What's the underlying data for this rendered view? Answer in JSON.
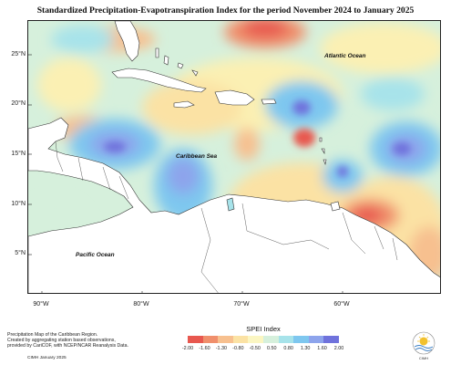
{
  "title": "Standardized Precipitation-Evapotranspiration Index for the period November 2024 to January 2025",
  "map": {
    "lat_labels": [
      "25°N",
      "20°N",
      "15°N",
      "10°N",
      "5°N"
    ],
    "lon_labels": [
      "90°W",
      "80°W",
      "70°W",
      "60°W"
    ],
    "place_labels": {
      "atlantic": "Atlantic Ocean",
      "caribbean": "Caribbean Sea",
      "pacific": "Pacific Ocean"
    }
  },
  "legend": {
    "title": "SPEI Index",
    "ticks": [
      "-2.00",
      "-1.60",
      "-1.30",
      "-0.80",
      "-0.50",
      "0.50",
      "0.80",
      "1.30",
      "1.60",
      "2.00"
    ],
    "colors": [
      "#e8584f",
      "#f08f6c",
      "#f7c08f",
      "#fbe2a4",
      "#fbf6c2",
      "#d6f0dc",
      "#a7e3ea",
      "#7ec7ef",
      "#8da4ec",
      "#6f72dc"
    ]
  },
  "caption": {
    "line1": "Precipitation Map of the Caribbean Region.",
    "line2": "Created by aggregating station based observations,",
    "line3": "provided by CariCOF, with NCEP/NCAR Reanalysis Data."
  },
  "footer_note": "CIMH January 2025",
  "logo": {
    "name": "CIMH",
    "icon": "cimh-sun-logo-icon"
  }
}
